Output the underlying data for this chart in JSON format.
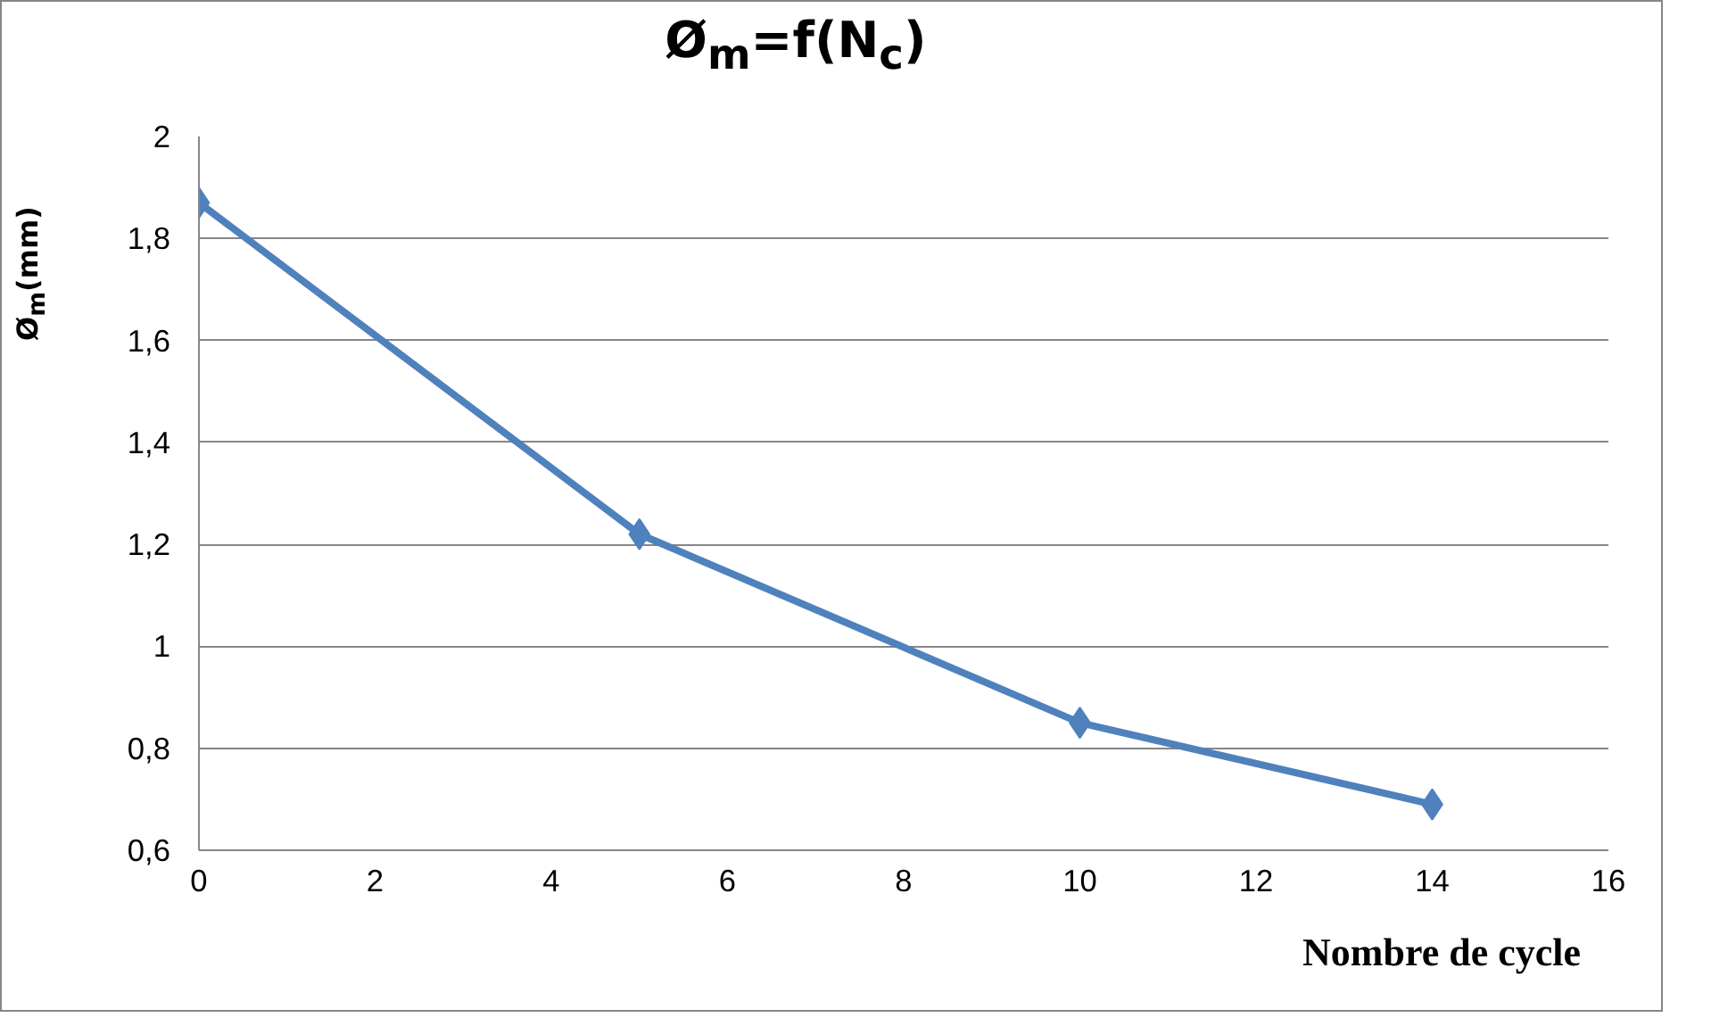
{
  "chart_data": {
    "type": "line",
    "title": "Ø$_{m}$=f(N$_{c}$)",
    "ylabel": "Ø$_{m}$(mm)",
    "xlabel": "Nombre de cycle",
    "x": [
      0,
      5,
      10,
      14
    ],
    "series": [
      {
        "color": "#4f81bd",
        "values": [
          1.87,
          1.22,
          0.85,
          0.69
        ]
      }
    ],
    "xlim": [
      0,
      16
    ],
    "xticks": [
      0,
      2,
      4,
      6,
      8,
      10,
      12,
      14,
      16
    ],
    "ylim": [
      0.6,
      2
    ],
    "yticks": [
      {
        "value": 0.6,
        "label": "0,6"
      },
      {
        "value": 0.8,
        "label": "0,8"
      },
      {
        "value": 1,
        "label": "1"
      },
      {
        "value": 1.2,
        "label": "1,2"
      },
      {
        "value": 1.4,
        "label": "1,4"
      },
      {
        "value": 1.6,
        "label": "1,6"
      },
      {
        "value": 1.8,
        "label": "1,8"
      },
      {
        "value": 2,
        "label": "2"
      }
    ],
    "grid": "y",
    "marker": "diamond",
    "line_style": "solid"
  }
}
